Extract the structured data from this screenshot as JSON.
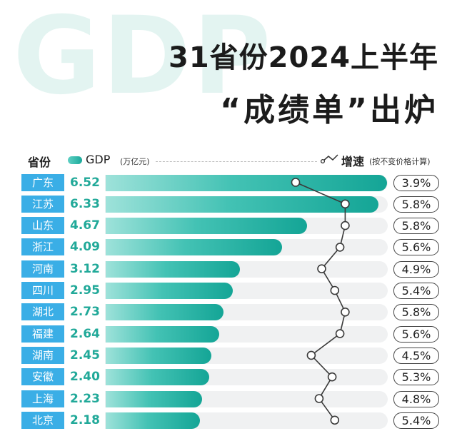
{
  "watermark": "GDP",
  "title_line1": "31省份2024上半年",
  "title_line2": "“成绩单”出炉",
  "header": {
    "province": "省份",
    "gdp": "GDP",
    "gdp_unit": "(万亿元)",
    "growth": "增速",
    "growth_note": "(按不变价格计算)"
  },
  "colors": {
    "province_bg": "#3aaee6",
    "gdp_text": "#21a999",
    "bar_start": "#9ee2da",
    "bar_end": "#14a596",
    "row_bg": "#f0f1f2"
  },
  "chart_data": {
    "type": "bar",
    "orientation": "horizontal",
    "categories": [
      "广东",
      "江苏",
      "山东",
      "浙江",
      "河南",
      "四川",
      "湖北",
      "福建",
      "湖南",
      "安徽",
      "上海",
      "北京"
    ],
    "series": [
      {
        "name": "GDP",
        "values": [
          6.52,
          6.33,
          4.67,
          4.09,
          3.12,
          2.95,
          2.73,
          2.64,
          2.45,
          2.4,
          2.23,
          2.18
        ]
      },
      {
        "name": "增速",
        "values": [
          3.9,
          5.8,
          5.8,
          5.6,
          4.9,
          5.4,
          5.8,
          5.6,
          4.5,
          5.3,
          4.8,
          5.4
        ]
      }
    ],
    "gdp_labels": [
      "6.52",
      "6.33",
      "4.67",
      "4.09",
      "3.12",
      "2.95",
      "2.73",
      "2.64",
      "2.45",
      "2.40",
      "2.23",
      "2.18"
    ],
    "growth_labels": [
      "3.9%",
      "5.8%",
      "5.8%",
      "5.6%",
      "4.9%",
      "5.4%",
      "5.8%",
      "5.6%",
      "4.5%",
      "5.3%",
      "4.8%",
      "5.4%"
    ]
  }
}
